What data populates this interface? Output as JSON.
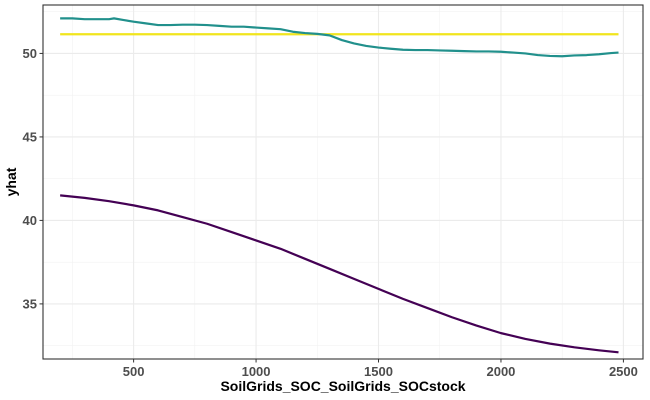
{
  "chart_data": {
    "type": "line",
    "title": "",
    "xlabel": "SoilGrids_SOC_SoilGrids_SOCstock",
    "ylabel": "yhat",
    "xlim": [
      130,
      2580
    ],
    "ylim": [
      31.7,
      52.9
    ],
    "x_ticks": [
      500,
      1000,
      1500,
      2000,
      2500
    ],
    "x_tick_labels": [
      "500",
      "1000",
      "1500",
      "2000",
      "2500"
    ],
    "y_ticks": [
      35,
      40,
      45,
      50
    ],
    "y_tick_labels": [
      "35",
      "40",
      "45",
      "50"
    ],
    "grid": true,
    "legend": "none",
    "series": [
      {
        "color": "#F1E51D",
        "x": [
          200,
          2480
        ],
        "y": [
          51.15,
          51.15
        ]
      },
      {
        "color": "#21908C",
        "x": [
          200,
          250,
          300,
          350,
          400,
          420,
          460,
          500,
          550,
          600,
          650,
          700,
          750,
          800,
          850,
          900,
          950,
          1000,
          1050,
          1100,
          1150,
          1200,
          1250,
          1300,
          1350,
          1400,
          1450,
          1500,
          1550,
          1600,
          1650,
          1700,
          1750,
          1800,
          1850,
          1900,
          1950,
          2000,
          2050,
          2100,
          2150,
          2200,
          2250,
          2300,
          2350,
          2400,
          2450,
          2480
        ],
        "y": [
          52.1,
          52.1,
          52.05,
          52.05,
          52.05,
          52.1,
          52.0,
          51.9,
          51.8,
          51.7,
          51.7,
          51.72,
          51.72,
          51.7,
          51.65,
          51.6,
          51.6,
          51.55,
          51.5,
          51.45,
          51.3,
          51.22,
          51.17,
          51.08,
          50.8,
          50.6,
          50.45,
          50.35,
          50.28,
          50.22,
          50.2,
          50.2,
          50.18,
          50.16,
          50.14,
          50.12,
          50.12,
          50.1,
          50.05,
          50.0,
          49.9,
          49.85,
          49.83,
          49.88,
          49.9,
          49.95,
          50.02,
          50.05
        ]
      },
      {
        "color": "#440154",
        "x": [
          200,
          300,
          400,
          500,
          600,
          700,
          800,
          900,
          1000,
          1100,
          1200,
          1300,
          1400,
          1500,
          1600,
          1700,
          1800,
          1900,
          2000,
          2100,
          2200,
          2300,
          2400,
          2480
        ],
        "y": [
          41.5,
          41.35,
          41.15,
          40.9,
          40.6,
          40.2,
          39.8,
          39.3,
          38.8,
          38.3,
          37.7,
          37.1,
          36.5,
          35.9,
          35.3,
          34.75,
          34.2,
          33.7,
          33.25,
          32.9,
          32.62,
          32.4,
          32.22,
          32.1
        ]
      }
    ]
  }
}
